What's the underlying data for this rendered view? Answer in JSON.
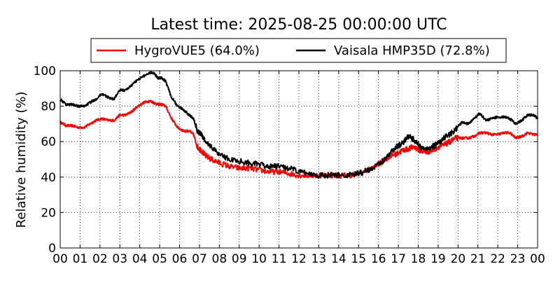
{
  "chart_data": {
    "type": "line",
    "title": "Latest time: 2025-08-25 00:00:00 UTC",
    "xlabel": "",
    "ylabel": "Relative humidity (%)",
    "xlim": [
      0,
      24
    ],
    "ylim": [
      0,
      100
    ],
    "yticks": [
      0,
      20,
      40,
      60,
      80,
      100
    ],
    "xtick_labels": [
      "00",
      "01",
      "02",
      "03",
      "04",
      "05",
      "06",
      "07",
      "08",
      "09",
      "10",
      "11",
      "12",
      "13",
      "14",
      "15",
      "16",
      "17",
      "18",
      "19",
      "20",
      "21",
      "22",
      "23",
      "00"
    ],
    "grid": true,
    "legend_position": "top",
    "series": [
      {
        "name": "HygroVUE5 (64.0%)",
        "color": "#ff0000",
        "x": [
          0,
          0.3,
          0.6,
          0.9,
          1.2,
          1.5,
          1.8,
          2.1,
          2.4,
          2.7,
          3.0,
          3.3,
          3.6,
          3.9,
          4.2,
          4.5,
          4.7,
          4.9,
          5.1,
          5.3,
          5.6,
          5.9,
          6.2,
          6.5,
          6.7,
          6.9,
          7.1,
          7.3,
          7.6,
          8.0,
          8.5,
          9.0,
          9.5,
          10.0,
          10.5,
          11.0,
          11.5,
          12.0,
          12.5,
          13.0,
          13.5,
          14.0,
          14.5,
          15.0,
          15.5,
          16.0,
          16.3,
          16.6,
          16.9,
          17.2,
          17.5,
          17.8,
          18.1,
          18.4,
          18.7,
          19.0,
          19.3,
          19.6,
          19.9,
          20.2,
          20.5,
          20.8,
          21.1,
          21.4,
          21.7,
          22.0,
          22.3,
          22.6,
          22.9,
          23.2,
          23.5,
          23.8,
          24.0
        ],
        "y": [
          71,
          69,
          69,
          68,
          68,
          70,
          72,
          73,
          72,
          72,
          75,
          75,
          77,
          80,
          82,
          83,
          82,
          81,
          81,
          80,
          73,
          68,
          66,
          66,
          64,
          57,
          55,
          52,
          50,
          48,
          46,
          45,
          45,
          44,
          43,
          43,
          42,
          41,
          41,
          41,
          41,
          41,
          41,
          42,
          44,
          47,
          50,
          52,
          53,
          55,
          56,
          57,
          55,
          54,
          55,
          57,
          58,
          60,
          62,
          62,
          62,
          63,
          65,
          65,
          64,
          64,
          65,
          65,
          62,
          63,
          65,
          64,
          64
        ]
      },
      {
        "name": "Vaisala HMP35D (72.8%)",
        "color": "#000000",
        "x": [
          0,
          0.3,
          0.6,
          0.9,
          1.2,
          1.5,
          1.8,
          2.1,
          2.4,
          2.7,
          3.0,
          3.3,
          3.6,
          3.9,
          4.2,
          4.5,
          4.7,
          4.9,
          5.1,
          5.3,
          5.6,
          5.9,
          6.2,
          6.5,
          6.7,
          6.9,
          7.1,
          7.3,
          7.6,
          8.0,
          8.5,
          9.0,
          9.5,
          10.0,
          10.5,
          11.0,
          11.5,
          12.0,
          12.5,
          13.0,
          13.5,
          14.0,
          14.5,
          15.0,
          15.5,
          16.0,
          16.3,
          16.6,
          16.9,
          17.2,
          17.5,
          17.8,
          18.1,
          18.4,
          18.7,
          19.0,
          19.3,
          19.6,
          19.9,
          20.2,
          20.5,
          20.8,
          21.1,
          21.4,
          21.7,
          22.0,
          22.3,
          22.6,
          22.9,
          23.2,
          23.5,
          23.8,
          24.0
        ],
        "y": [
          84,
          81,
          81,
          80,
          80,
          82,
          84,
          87,
          85,
          84,
          89,
          89,
          92,
          95,
          97,
          99,
          99,
          96,
          96,
          94,
          85,
          80,
          78,
          75,
          73,
          66,
          64,
          60,
          57,
          53,
          50,
          49,
          48,
          47,
          46,
          46,
          45,
          43,
          42,
          41,
          41,
          41,
          41,
          42,
          44,
          47,
          50,
          54,
          57,
          59,
          63,
          61,
          57,
          56,
          57,
          59,
          62,
          64,
          67,
          71,
          70,
          73,
          76,
          72,
          73,
          74,
          74,
          73,
          70,
          72,
          75,
          75,
          73
        ]
      }
    ]
  }
}
